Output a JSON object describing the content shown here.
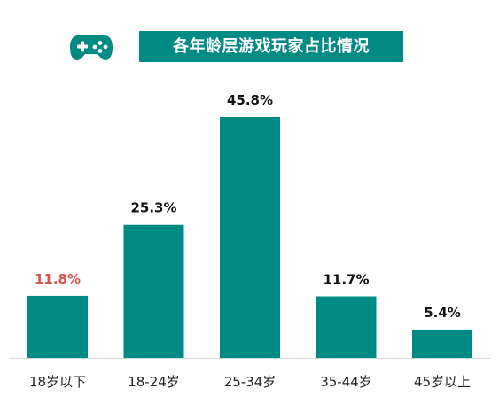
{
  "header": {
    "title": "各年龄层游戏玩家占比情况",
    "icon": "gamepad-icon"
  },
  "colors": {
    "bar": "#008a84",
    "title_bg": "#008a84",
    "label_default": "#111111",
    "label_highlight": "#d9534f",
    "axis": "#d9d9d9"
  },
  "chart_data": {
    "type": "bar",
    "title": "各年龄层游戏玩家占比情况",
    "categories": [
      "18岁以下",
      "18-24岁",
      "25-34岁",
      "35-44岁",
      "45岁以上"
    ],
    "values": [
      11.8,
      25.3,
      45.8,
      11.7,
      5.4
    ],
    "labels": [
      "11.8%",
      "25.3%",
      "45.8%",
      "11.7%",
      "5.4%"
    ],
    "highlight_index": 0,
    "unit": "%",
    "ylim": [
      0,
      45.8
    ],
    "grid": false,
    "legend": "none"
  }
}
